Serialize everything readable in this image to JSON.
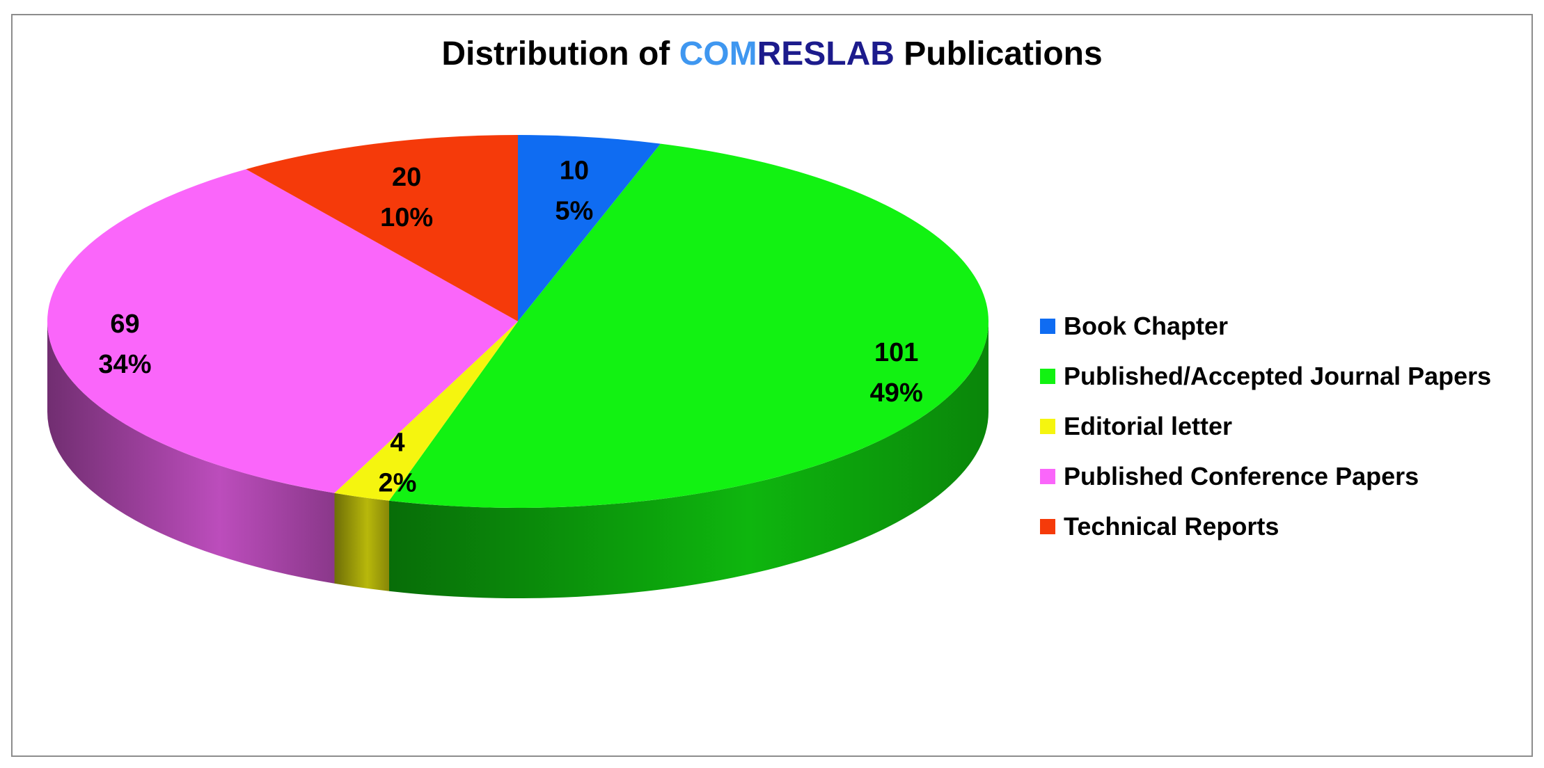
{
  "chart_data": {
    "type": "pie",
    "title_parts": [
      {
        "text": "Distribution of ",
        "color": "#000000"
      },
      {
        "text": "COM",
        "color": "#3f97f0"
      },
      {
        "text": "RESLAB",
        "color": "#1c1b8c"
      },
      {
        "text": " Publications",
        "color": "#000000"
      }
    ],
    "slices": [
      {
        "label": "Book Chapter",
        "value": 10,
        "percent": "5%",
        "color": "#0f6cf2"
      },
      {
        "label": "Published/Accepted Journal Papers",
        "value": 101,
        "percent": "49%",
        "color": "#12f212"
      },
      {
        "label": "Editorial letter",
        "value": 4,
        "percent": "2%",
        "color": "#f5f50f"
      },
      {
        "label": "Published Conference Papers",
        "value": 69,
        "percent": "34%",
        "color": "#fa66fa"
      },
      {
        "label": "Technical Reports",
        "value": 20,
        "percent": "10%",
        "color": "#f53a0a"
      }
    ],
    "legend_position": "right",
    "three_d": true
  }
}
